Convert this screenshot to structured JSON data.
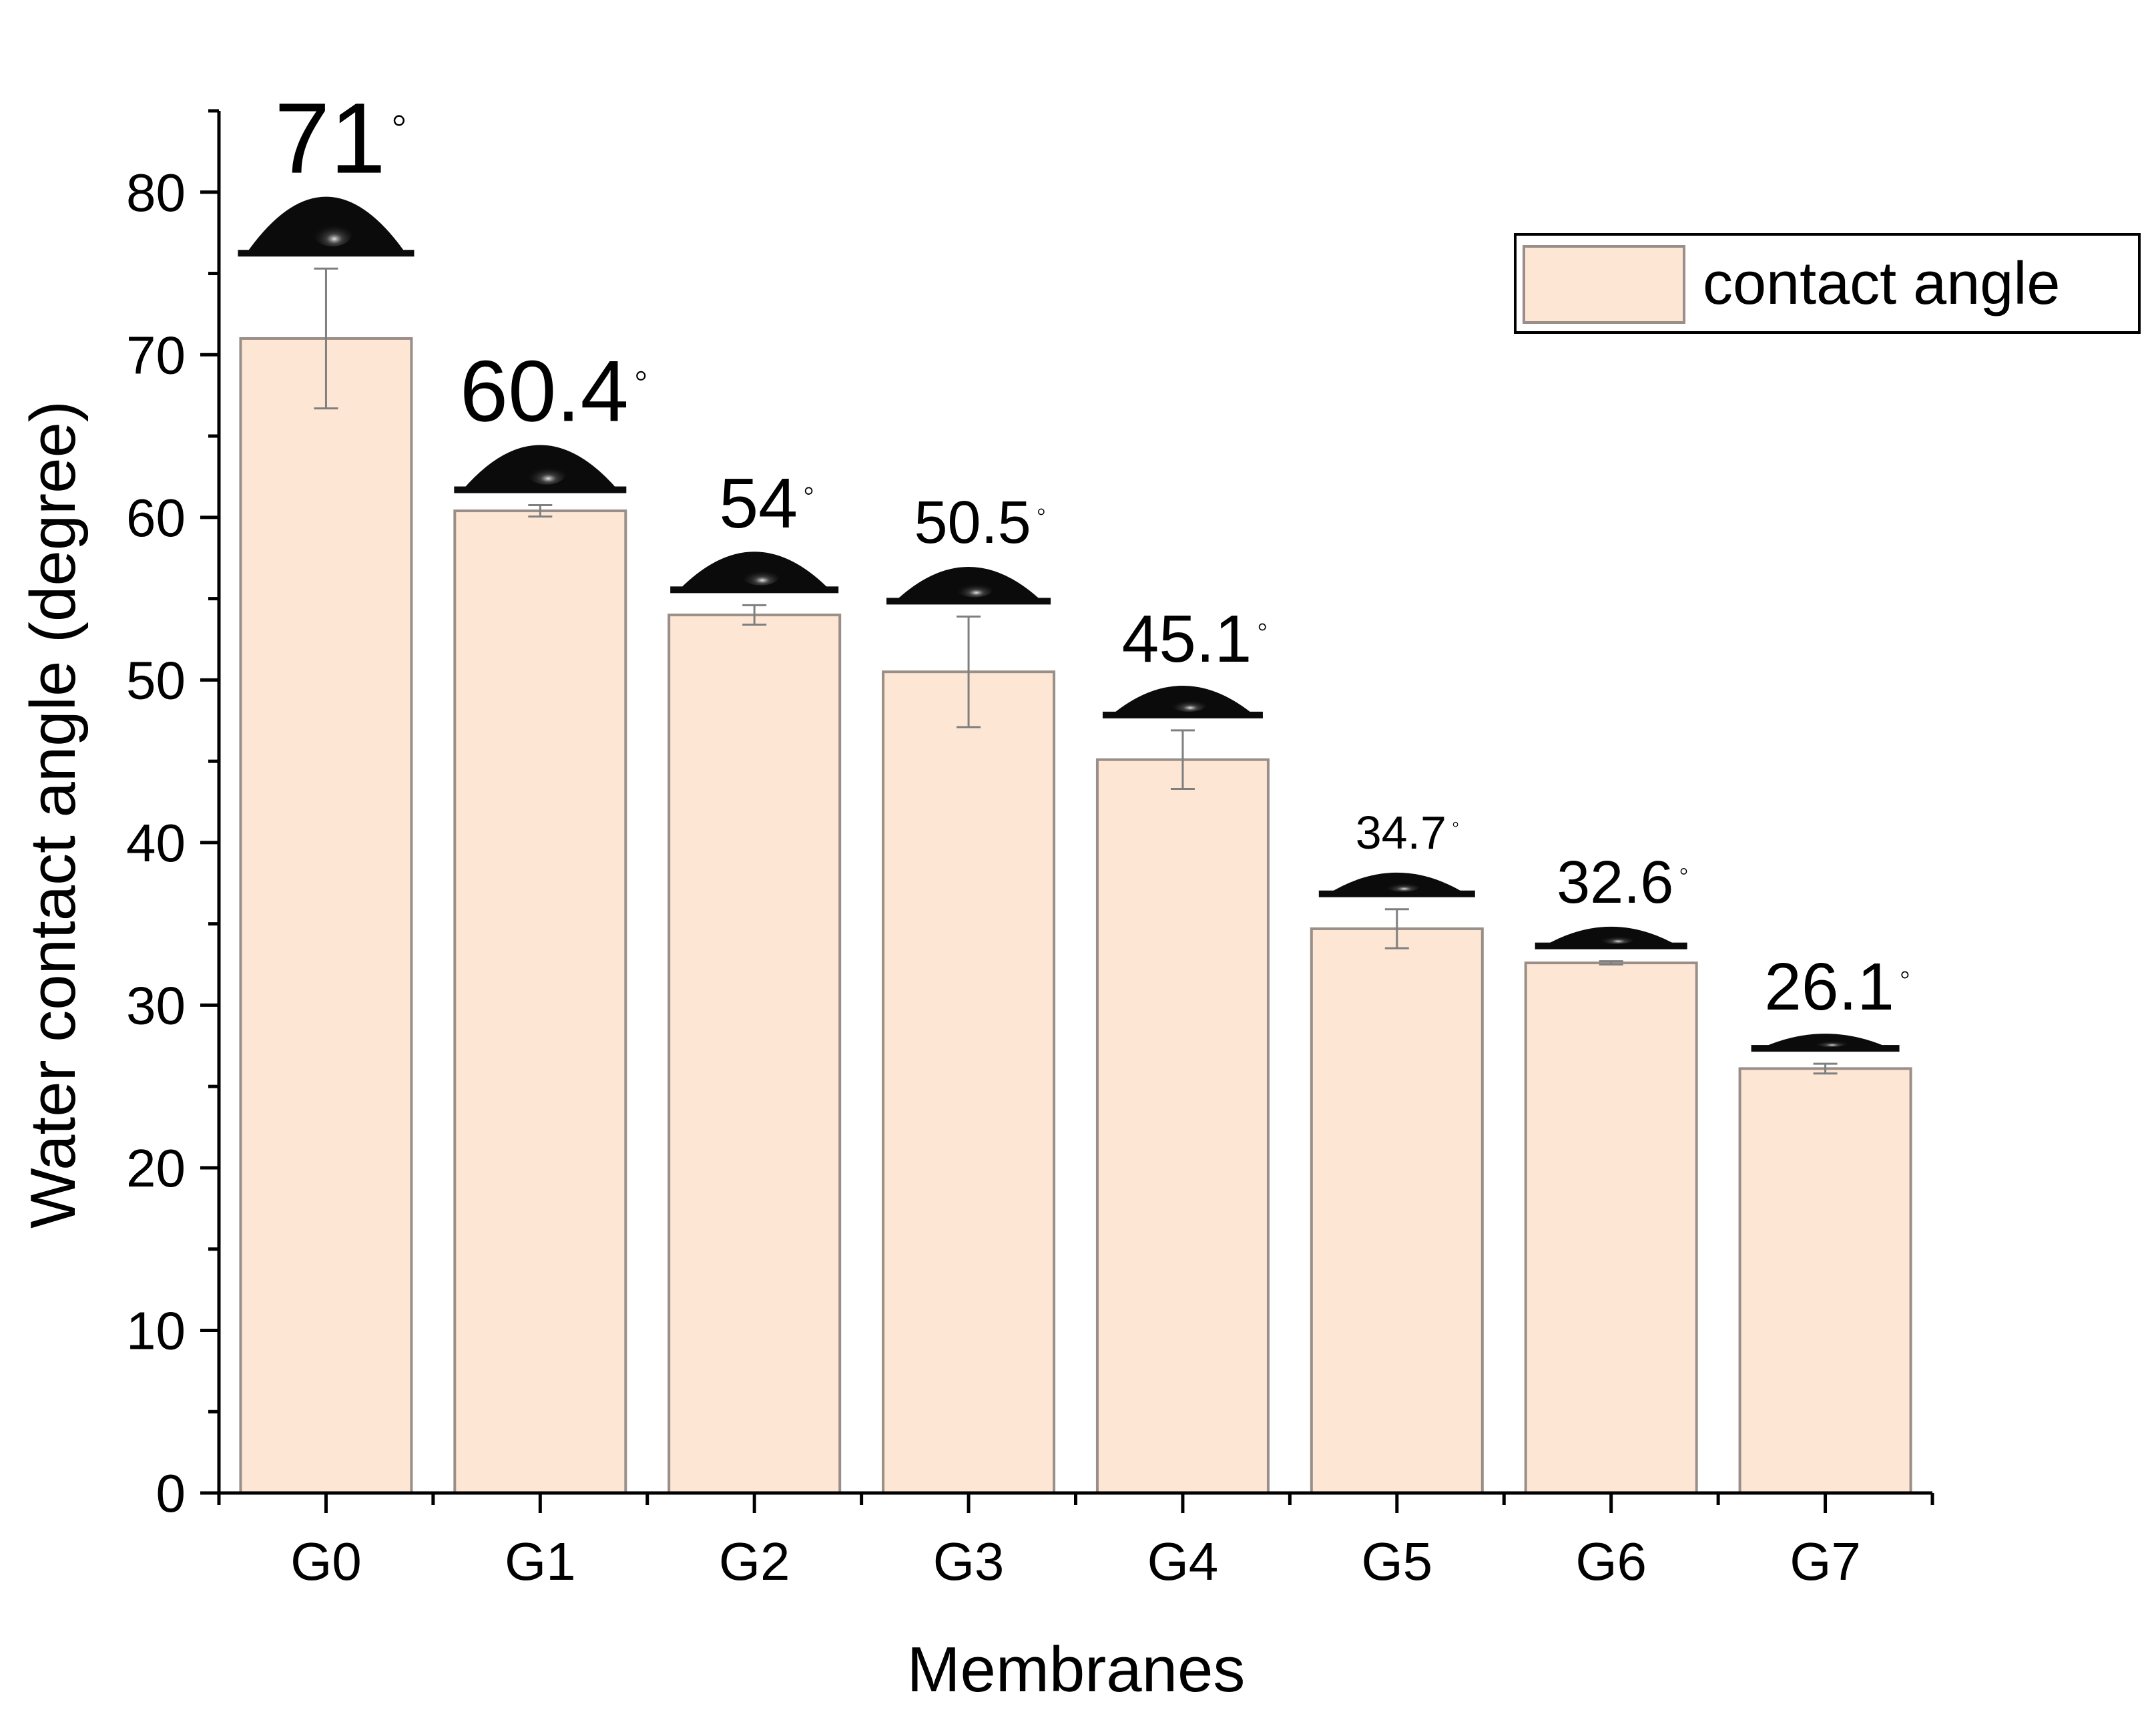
{
  "chart_data": {
    "type": "bar",
    "title": "",
    "xlabel": "Membranes",
    "ylabel": "Water contact angle (degree)",
    "ylim": [
      0,
      85
    ],
    "yticks": [
      0,
      10,
      20,
      30,
      40,
      50,
      60,
      70,
      80
    ],
    "categories": [
      "G0",
      "G1",
      "G2",
      "G3",
      "G4",
      "G5",
      "G6",
      "G7"
    ],
    "series": [
      {
        "name": "contact angle",
        "values": [
          71,
          60.4,
          54,
          50.5,
          45.1,
          34.7,
          32.6,
          26.1
        ],
        "errors": [
          4.3,
          0.35,
          0.6,
          3.4,
          1.8,
          1.2,
          0.1,
          0.3
        ]
      }
    ],
    "annotations": [
      "71",
      "60.4",
      "54",
      "50.5",
      "45.1",
      "34.7",
      "32.6",
      "26.1"
    ],
    "annotation_unit_symbol": "◦",
    "legend": {
      "label": "contact angle",
      "placement": "top-right"
    },
    "grid": false,
    "colors": {
      "bar_fill": "#fde6d4",
      "bar_stroke": "#9a8f88",
      "error_bar": "#7f7f7f",
      "droplet": "#0b0b0b",
      "axis": "#000000"
    }
  }
}
